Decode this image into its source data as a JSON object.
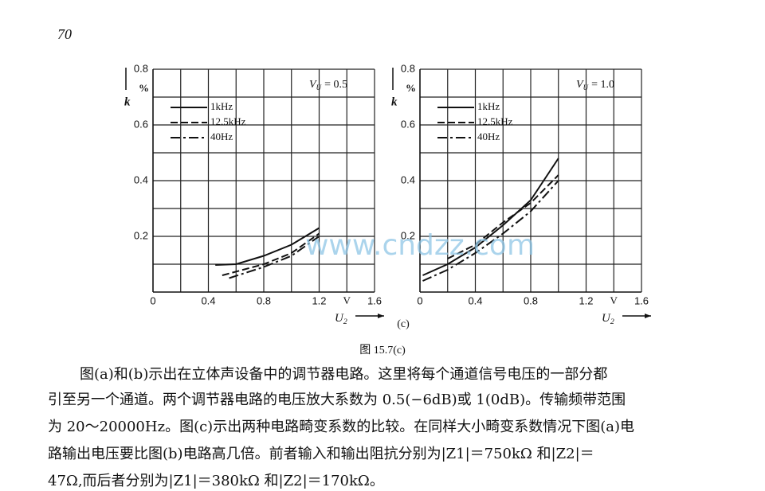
{
  "page_number": "70",
  "chart_data": [
    {
      "type": "line",
      "y_label": "k",
      "y_unit": "%",
      "x_label": {
        "symbol": "U",
        "subscript": "2"
      },
      "x_unit": "V",
      "annotation": {
        "symbol": "V",
        "subscript": "U",
        "text": "= 0.5"
      },
      "xlim": [
        0,
        1.6
      ],
      "xticks": [
        0,
        0.4,
        0.8,
        1.2,
        1.6
      ],
      "minor_xticks": [
        0.2,
        0.6,
        1.0,
        1.4
      ],
      "ylim": [
        0,
        0.8
      ],
      "yticks": [
        0.2,
        0.4,
        0.6,
        0.8
      ],
      "minor_yticks": [
        0.1,
        0.3,
        0.5,
        0.7
      ],
      "grid": true,
      "series": [
        {
          "name": "1kHz",
          "color": "#111111",
          "dash": "solid",
          "x": [
            0.45,
            0.6,
            0.8,
            1.0,
            1.2
          ],
          "values": [
            0.097,
            0.1,
            0.13,
            0.17,
            0.23
          ]
        },
        {
          "name": "12.5kHz",
          "color": "#111111",
          "dash": "dashed",
          "x": [
            0.5,
            0.8,
            1.0,
            1.2
          ],
          "values": [
            0.06,
            0.1,
            0.14,
            0.21
          ]
        },
        {
          "name": "40Hz",
          "color": "#111111",
          "dash": "dashdot",
          "x": [
            0.55,
            0.8,
            1.0,
            1.2
          ],
          "values": [
            0.05,
            0.09,
            0.13,
            0.2
          ]
        }
      ]
    },
    {
      "type": "line",
      "y_label": "k",
      "y_unit": "%",
      "x_label": {
        "symbol": "U",
        "subscript": "2"
      },
      "x_unit": "V",
      "annotation": {
        "symbol": "V",
        "subscript": "U",
        "text": "= 1.0"
      },
      "xlim": [
        0,
        1.6
      ],
      "xticks": [
        0,
        0.4,
        0.8,
        1.2,
        1.6
      ],
      "minor_xticks": [
        0.2,
        0.6,
        1.0,
        1.4
      ],
      "ylim": [
        0,
        0.8
      ],
      "yticks": [
        0.2,
        0.4,
        0.6,
        0.8
      ],
      "minor_yticks": [
        0.1,
        0.3,
        0.5,
        0.7
      ],
      "grid": true,
      "series": [
        {
          "name": "1kHz",
          "color": "#111111",
          "dash": "solid",
          "x": [
            0.02,
            0.2,
            0.4,
            0.6,
            0.8,
            1.0
          ],
          "values": [
            0.06,
            0.1,
            0.16,
            0.24,
            0.33,
            0.48
          ]
        },
        {
          "name": "12.5kHz",
          "color": "#111111",
          "dash": "dashed",
          "x": [
            0.2,
            0.4,
            0.6,
            0.8,
            1.0
          ],
          "values": [
            0.12,
            0.17,
            0.25,
            0.32,
            0.42
          ]
        },
        {
          "name": "40Hz",
          "color": "#111111",
          "dash": "dashdot",
          "x": [
            0.02,
            0.2,
            0.4,
            0.6,
            0.8,
            1.0
          ],
          "values": [
            0.04,
            0.08,
            0.14,
            0.21,
            0.29,
            0.4
          ]
        }
      ]
    }
  ],
  "panel_label": "(c)",
  "watermark": "www.cndzz.com",
  "caption": "图 15.7(c)",
  "body": [
    "图(a)和(b)示出在立体声设备中的调节器电路。这里将每个通道信号电压的一部分都",
    "引至另一个通道。两个调节器电路的电压放大系数为 0.5(−6dB)或 1(0dB)。传输频带范围",
    "为 20～20000Hz。图(c)示出两种电路畸变系数的比较。在同样大小畸变系数情况下图(a)电",
    "路输出电压要比图(b)电路高几倍。前者输入和输出阻抗分别为|Z1|＝750kΩ 和|Z2|＝",
    "47Ω,而后者分别为|Z1|＝380kΩ 和|Z2|＝170kΩ。"
  ]
}
